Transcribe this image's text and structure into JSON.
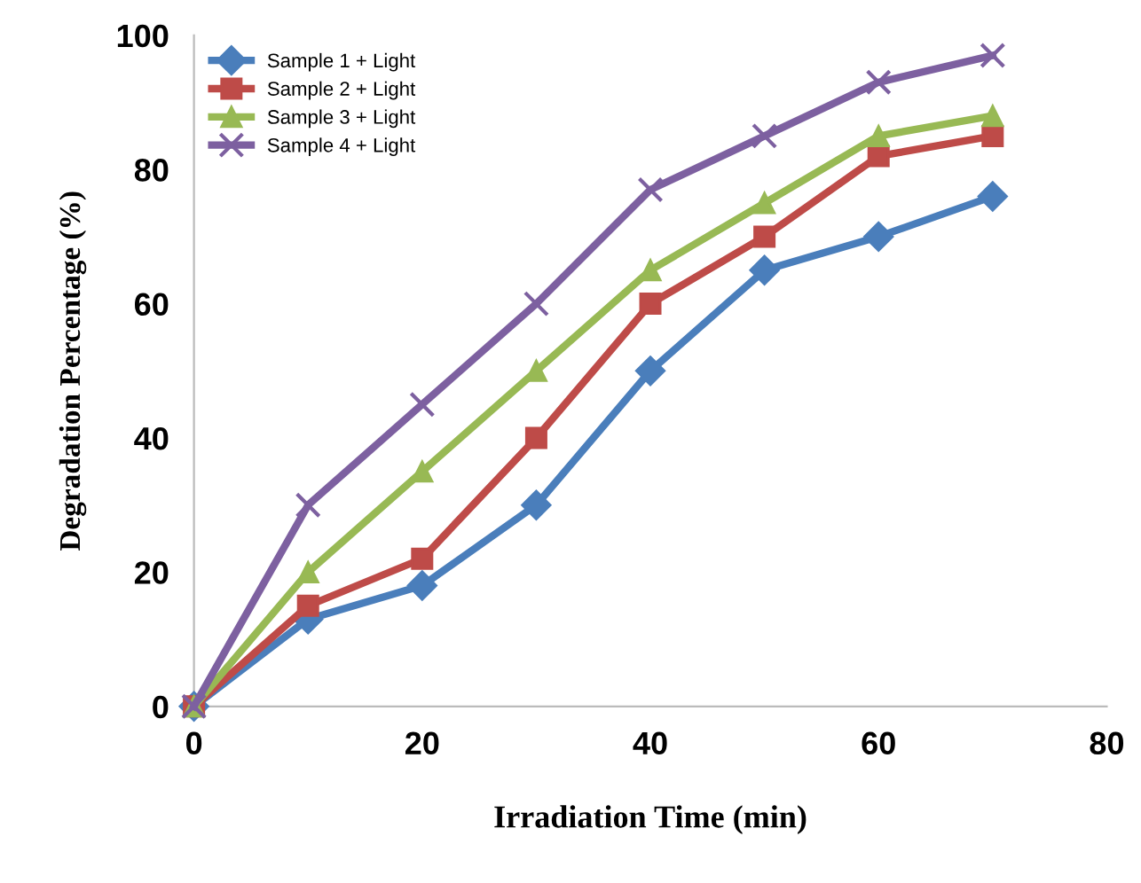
{
  "chart_data": {
    "type": "line",
    "xlabel": "Irradiation Time (min)",
    "ylabel": "Degradation Percentage (%)",
    "x": [
      0,
      10,
      20,
      30,
      40,
      50,
      60,
      70
    ],
    "series": [
      {
        "name": "Sample 1 + Light",
        "color": "#4a7ebb",
        "marker": "diamond",
        "values": [
          0,
          13,
          18,
          30,
          50,
          65,
          70,
          76
        ]
      },
      {
        "name": "Sample 2 + Light",
        "color": "#be4b48",
        "marker": "square",
        "values": [
          0,
          15,
          22,
          40,
          60,
          70,
          82,
          85
        ]
      },
      {
        "name": "Sample 3 + Light",
        "color": "#98b954",
        "marker": "triangle",
        "values": [
          0,
          20,
          35,
          50,
          65,
          75,
          85,
          88
        ]
      },
      {
        "name": "Sample 4 + Light",
        "color": "#7d60a0",
        "marker": "cross",
        "values": [
          0,
          30,
          45,
          60,
          77,
          85,
          93,
          97
        ]
      }
    ],
    "xlim": [
      0,
      80
    ],
    "xticks": [
      0,
      20,
      40,
      60,
      80
    ],
    "ylim": [
      0,
      100
    ],
    "yticks": [
      0,
      20,
      40,
      60,
      80,
      100
    ],
    "grid": false,
    "legend": "top left",
    "line_style": "solid"
  }
}
